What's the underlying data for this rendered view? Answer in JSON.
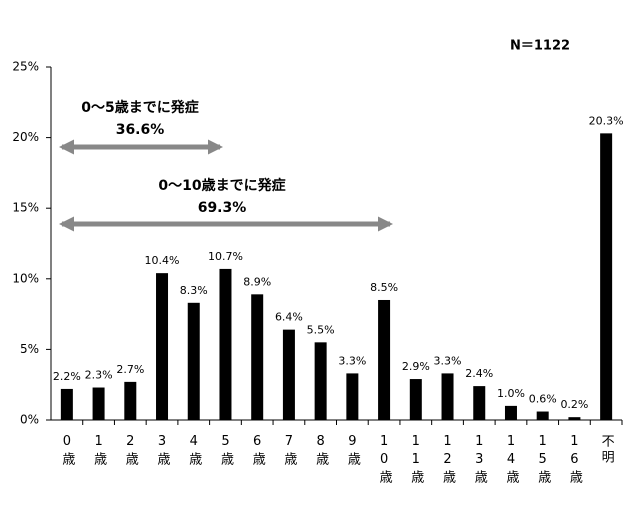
{
  "chart_data": {
    "type": "bar",
    "annotations": [
      "N＝1122",
      "0～5歳までに発症",
      "36.6%",
      "0～10歳までに発症",
      "69.3%"
    ],
    "categories": [
      "0歳",
      "1歳",
      "2歳",
      "3歳",
      "4歳",
      "5歳",
      "6歳",
      "7歳",
      "8歳",
      "9歳",
      "10歳",
      "11歳",
      "12歳",
      "13歳",
      "14歳",
      "15歳",
      "16歳",
      "不明"
    ],
    "values": [
      2.2,
      2.3,
      2.7,
      10.4,
      8.3,
      10.7,
      8.9,
      6.4,
      5.5,
      3.3,
      8.5,
      2.9,
      3.3,
      2.4,
      1.0,
      0.6,
      0.2,
      20.3
    ],
    "value_labels": [
      "2.2%",
      "2.3%",
      "2.7%",
      "10.4%",
      "8.3%",
      "10.7%",
      "8.9%",
      "6.4%",
      "5.5%",
      "3.3%",
      "8.5%",
      "2.9%",
      "3.3%",
      "2.4%",
      "1.0%",
      "0.6%",
      "0.2%",
      "20.3%"
    ],
    "color": "#000000",
    "ylim": [
      0,
      25
    ],
    "yticks": [
      {
        "value": 0,
        "label": "0%"
      },
      {
        "value": 5,
        "label": "5%"
      },
      {
        "value": 10,
        "label": "10%"
      },
      {
        "value": 15,
        "label": "15%"
      },
      {
        "value": 20,
        "label": "20%"
      },
      {
        "value": 25,
        "label": "25%"
      }
    ]
  }
}
